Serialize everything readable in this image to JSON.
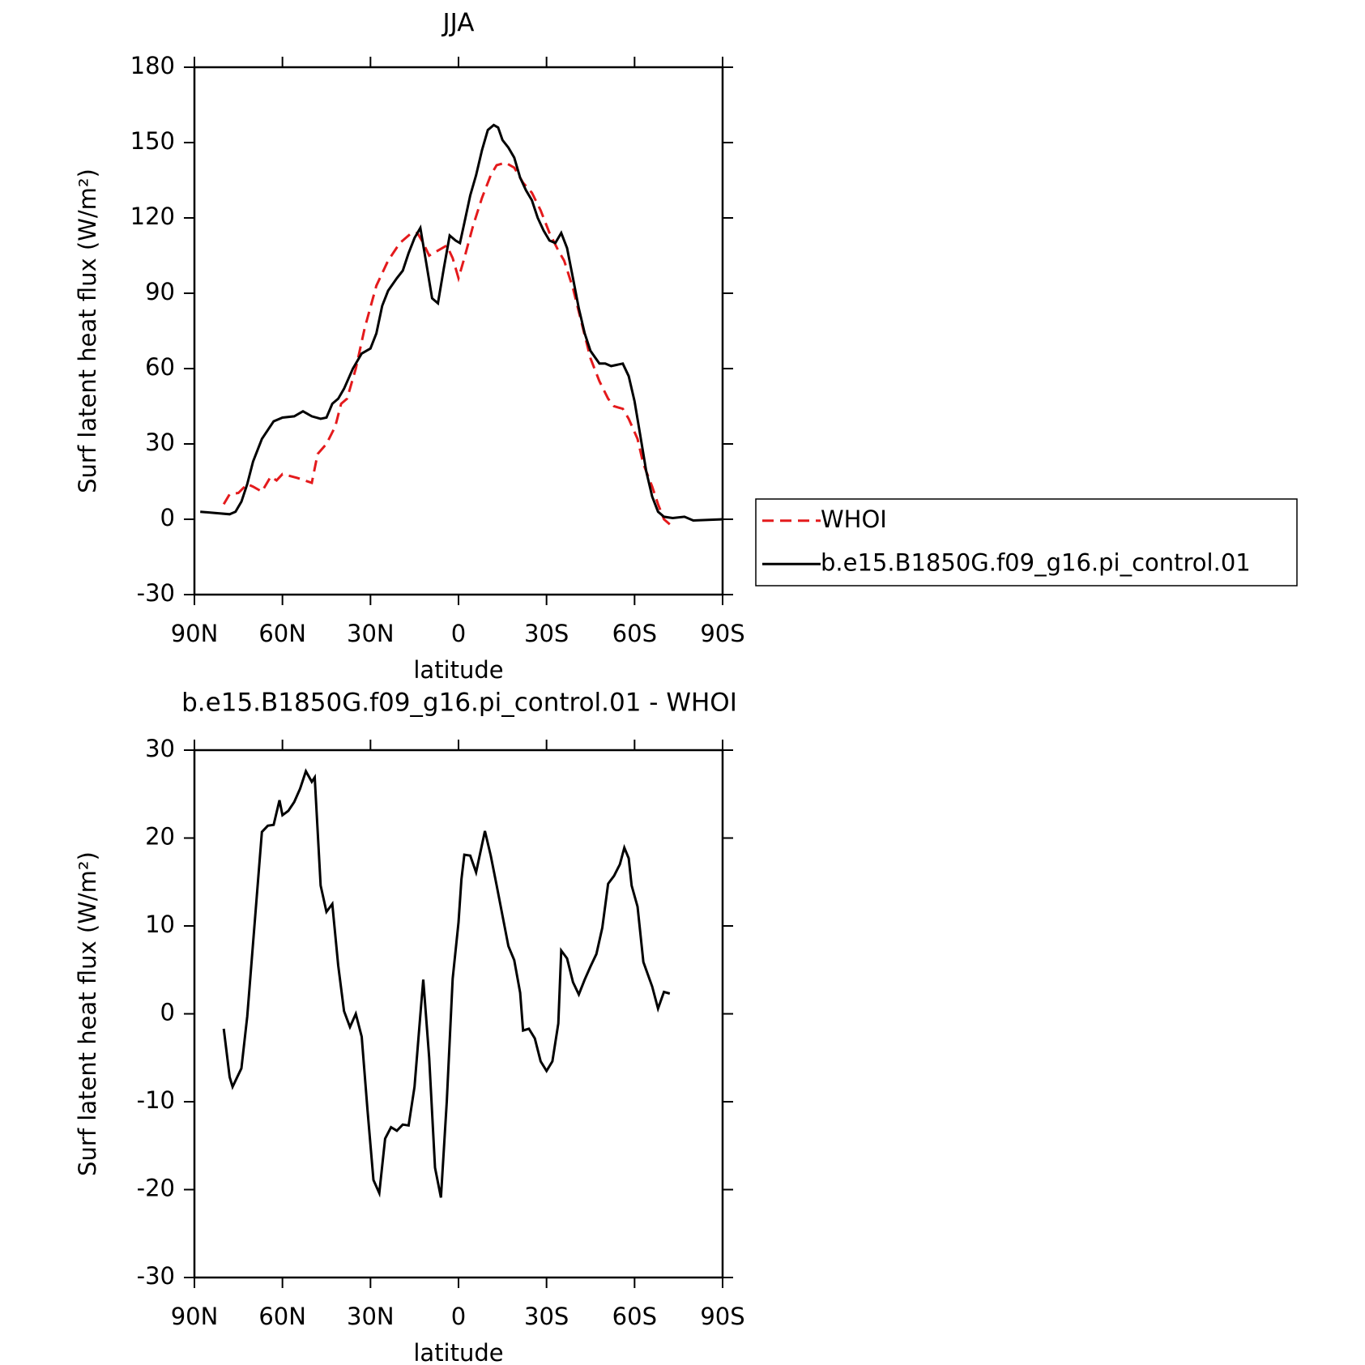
{
  "chart_data": [
    {
      "type": "line",
      "title": "JJA",
      "x_label": "latitude",
      "y_label": "Surf latent heat flux (W/m²)",
      "xlim": [
        90,
        -90
      ],
      "xticks": [
        {
          "value": 90,
          "label": "90N"
        },
        {
          "value": 60,
          "label": "60N"
        },
        {
          "value": 30,
          "label": "30N"
        },
        0,
        {
          "value": -30,
          "label": "30S"
        },
        {
          "value": -60,
          "label": "60S"
        },
        {
          "value": -90,
          "label": "90S"
        }
      ],
      "ylim": [
        -30,
        180
      ],
      "yticks": [
        -30,
        0,
        30,
        60,
        90,
        120,
        150,
        180
      ],
      "legend": "right",
      "series": [
        {
          "name": "WHOI",
          "color": "#e41a1c",
          "dash": "dashed",
          "x": [
            80,
            78,
            75,
            72,
            70,
            67,
            64,
            62,
            60,
            55,
            50,
            48,
            45,
            42,
            40,
            38,
            35,
            32,
            28,
            24,
            20,
            16,
            14,
            12,
            10,
            7,
            4,
            2,
            0,
            -2,
            -5,
            -8,
            -11,
            -13,
            -16,
            -19,
            -22,
            -25,
            -28,
            -31,
            -34,
            -36,
            -39,
            -42,
            -45,
            -48,
            -51,
            -53,
            -56,
            -58,
            -61,
            -63,
            -66,
            -68,
            -70,
            -72
          ],
          "values": [
            6,
            10,
            10.5,
            14,
            13,
            11,
            17,
            15.5,
            18,
            16.5,
            14.5,
            26,
            30,
            37,
            46,
            48,
            60,
            76,
            93,
            103,
            110,
            114,
            114,
            110,
            105,
            107,
            109,
            104,
            96,
            104,
            117,
            128,
            137,
            141,
            142,
            140,
            134,
            130,
            123,
            114,
            107,
            103,
            92,
            78,
            64,
            55,
            48,
            45,
            44,
            40,
            32,
            22,
            13,
            6,
            0,
            -2
          ]
        },
        {
          "name": "b.e15.B1850G.f09_g16.pi_control.01",
          "color": "#000000",
          "dash": "solid",
          "x": [
            88,
            83,
            78,
            76,
            74,
            72,
            70,
            67,
            63,
            60,
            56,
            53,
            50,
            47,
            45,
            43,
            41,
            39,
            36,
            33,
            30,
            28,
            26,
            24,
            21,
            19,
            17,
            15,
            13,
            11,
            9,
            7,
            5,
            3,
            1,
            -0.5,
            -2,
            -4,
            -6,
            -8,
            -10,
            -12,
            -13.5,
            -15,
            -17,
            -19,
            -21,
            -23,
            -25,
            -27,
            -29,
            -31,
            -33,
            -35,
            -37,
            -39,
            -41,
            -43,
            -45,
            -48,
            -50,
            -52,
            -56,
            -58,
            -60,
            -62,
            -64,
            -66,
            -68,
            -70,
            -73,
            -77,
            -80,
            -90
          ],
          "values": [
            3,
            2.5,
            2,
            3,
            7,
            14,
            23,
            32,
            39,
            40.5,
            41,
            43,
            41,
            40,
            40.5,
            46,
            48,
            52,
            60,
            66,
            68,
            74,
            85,
            91,
            96,
            99,
            106,
            112,
            116,
            102,
            88,
            86,
            100,
            113,
            111,
            110,
            118,
            129,
            137,
            147,
            155,
            157,
            156,
            151,
            148,
            144,
            136,
            131,
            127,
            120,
            115,
            111,
            110,
            114,
            108,
            96,
            84,
            74,
            67,
            62,
            62,
            61,
            62,
            57,
            47,
            33,
            19,
            9,
            3,
            1,
            0.5,
            1,
            -0.5,
            0
          ]
        }
      ]
    },
    {
      "type": "line",
      "title": "b.e15.B1850G.f09_g16.pi_control.01 - WHOI",
      "x_label": "latitude",
      "y_label": "Surf latent heat flux (W/m²)",
      "xlim": [
        90,
        -90
      ],
      "xticks": [
        {
          "value": 90,
          "label": "90N"
        },
        {
          "value": 60,
          "label": "60N"
        },
        {
          "value": 30,
          "label": "30N"
        },
        0,
        {
          "value": -30,
          "label": "30S"
        },
        {
          "value": -60,
          "label": "60S"
        },
        {
          "value": -90,
          "label": "90S"
        }
      ],
      "ylim": [
        -30,
        30
      ],
      "yticks": [
        -30,
        -20,
        -10,
        0,
        10,
        20,
        30
      ],
      "series": [
        {
          "color": "#000000",
          "dash": "solid",
          "x": [
            80,
            78,
            77,
            74,
            72,
            67,
            65,
            63,
            61,
            60,
            58,
            56,
            54,
            52,
            50,
            49,
            47,
            45,
            43,
            41,
            39,
            37,
            35,
            33,
            31,
            29,
            27,
            25,
            23,
            21,
            19,
            17,
            15,
            13,
            12,
            10,
            8,
            6,
            4,
            2,
            0,
            -1,
            -2,
            -4,
            -6,
            -9,
            -11,
            -13,
            -17,
            -19,
            -21,
            -22,
            -24,
            -26,
            -28,
            -30,
            -32,
            -34,
            -35,
            -37,
            -39,
            -41,
            -43,
            -45,
            -47,
            -49,
            -51,
            -53,
            -55,
            -56.5,
            -58,
            -59,
            -61,
            -63,
            -66,
            -68,
            -70,
            -72
          ],
          "values": [
            -1.7,
            -7.2,
            -8.3,
            -6.2,
            -0.3,
            20.7,
            21.4,
            21.5,
            24.3,
            22.6,
            23.1,
            24.1,
            25.6,
            27.6,
            26.4,
            26.9,
            14.6,
            11.6,
            12.5,
            5.5,
            0.3,
            -1.5,
            0,
            -2.6,
            -11,
            -18.9,
            -20.4,
            -14.2,
            -12.9,
            -13.3,
            -12.6,
            -12.7,
            -8.3,
            -0.1,
            3.9,
            -5,
            -17.5,
            -20.9,
            -10,
            4,
            10.4,
            15.3,
            18.1,
            18,
            16.1,
            20.8,
            18,
            14.6,
            7.7,
            6.1,
            2.4,
            -1.9,
            -1.7,
            -2.8,
            -5.4,
            -6.5,
            -5.4,
            -1.1,
            7.2,
            6.3,
            3.6,
            2.2,
            3.9,
            5.4,
            6.8,
            9.8,
            14.8,
            15.7,
            17,
            18.9,
            17.7,
            14.6,
            12.2,
            5.9,
            3.1,
            0.6,
            2.5,
            2.3
          ]
        }
      ]
    }
  ]
}
